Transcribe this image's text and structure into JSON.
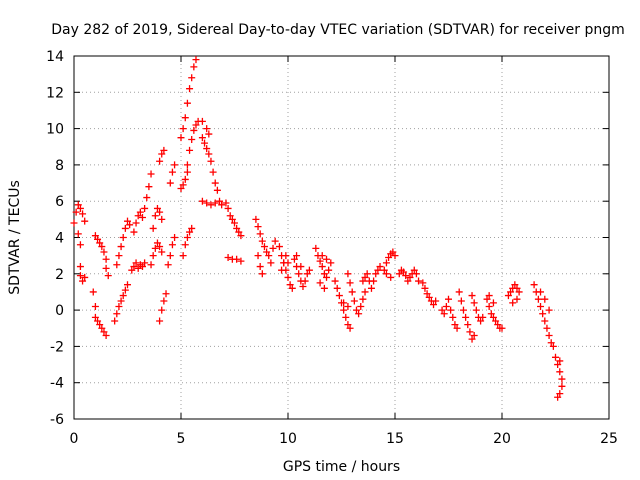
{
  "chart_data": {
    "type": "scatter",
    "title": "Day 282 of 2019, Sidereal Day-to-day VTEC variation (SDTVAR) for receiver pngm",
    "xlabel": "GPS time / hours",
    "ylabel": "SDTVAR / TECUs",
    "xlim": [
      0,
      25
    ],
    "ylim": [
      -6,
      14
    ],
    "xticks": [
      0,
      5,
      10,
      15,
      20,
      25
    ],
    "yticks": [
      -6,
      -4,
      -2,
      0,
      2,
      4,
      6,
      8,
      10,
      12,
      14
    ],
    "grid": true,
    "marker": "+",
    "marker_color": "#ff0000",
    "series": [
      {
        "name": "SDTVAR",
        "points": [
          [
            0.0,
            4.8
          ],
          [
            0.1,
            5.4
          ],
          [
            0.2,
            5.8
          ],
          [
            0.3,
            5.6
          ],
          [
            0.4,
            5.3
          ],
          [
            0.5,
            4.9
          ],
          [
            0.2,
            4.2
          ],
          [
            0.3,
            3.6
          ],
          [
            0.3,
            2.4
          ],
          [
            0.3,
            1.9
          ],
          [
            0.4,
            1.6
          ],
          [
            0.5,
            1.8
          ],
          [
            0.9,
            1.0
          ],
          [
            1.0,
            0.2
          ],
          [
            1.0,
            -0.4
          ],
          [
            1.1,
            -0.6
          ],
          [
            1.2,
            -0.8
          ],
          [
            1.3,
            -1.0
          ],
          [
            1.4,
            -1.2
          ],
          [
            1.5,
            -1.4
          ],
          [
            1.0,
            4.1
          ],
          [
            1.1,
            3.9
          ],
          [
            1.2,
            3.7
          ],
          [
            1.3,
            3.5
          ],
          [
            1.4,
            3.2
          ],
          [
            1.5,
            2.8
          ],
          [
            1.5,
            2.3
          ],
          [
            1.6,
            1.9
          ],
          [
            1.9,
            -0.6
          ],
          [
            2.0,
            -0.2
          ],
          [
            2.1,
            0.2
          ],
          [
            2.2,
            0.5
          ],
          [
            2.3,
            0.8
          ],
          [
            2.4,
            1.1
          ],
          [
            2.5,
            1.4
          ],
          [
            2.0,
            2.5
          ],
          [
            2.1,
            3.0
          ],
          [
            2.2,
            3.5
          ],
          [
            2.3,
            4.0
          ],
          [
            2.4,
            4.5
          ],
          [
            2.5,
            4.9
          ],
          [
            2.6,
            4.7
          ],
          [
            2.7,
            2.2
          ],
          [
            2.8,
            2.4
          ],
          [
            2.9,
            2.6
          ],
          [
            3.0,
            2.3
          ],
          [
            3.1,
            2.5
          ],
          [
            3.2,
            2.4
          ],
          [
            3.3,
            2.6
          ],
          [
            2.8,
            4.3
          ],
          [
            2.9,
            4.8
          ],
          [
            3.0,
            5.2
          ],
          [
            3.1,
            5.4
          ],
          [
            3.2,
            5.1
          ],
          [
            3.3,
            5.6
          ],
          [
            3.4,
            6.2
          ],
          [
            3.5,
            6.8
          ],
          [
            3.6,
            7.5
          ],
          [
            3.6,
            2.5
          ],
          [
            3.7,
            3.0
          ],
          [
            3.8,
            3.4
          ],
          [
            3.9,
            3.7
          ],
          [
            4.0,
            3.5
          ],
          [
            4.1,
            3.2
          ],
          [
            3.7,
            4.5
          ],
          [
            3.8,
            5.2
          ],
          [
            3.9,
            5.6
          ],
          [
            4.0,
            5.4
          ],
          [
            4.1,
            5.0
          ],
          [
            4.0,
            8.2
          ],
          [
            4.1,
            8.6
          ],
          [
            4.2,
            8.8
          ],
          [
            4.0,
            -0.6
          ],
          [
            4.1,
            0.0
          ],
          [
            4.2,
            0.5
          ],
          [
            4.3,
            0.9
          ],
          [
            4.4,
            2.5
          ],
          [
            4.5,
            3.0
          ],
          [
            4.6,
            3.6
          ],
          [
            4.7,
            4.0
          ],
          [
            4.5,
            7.0
          ],
          [
            4.6,
            7.6
          ],
          [
            4.7,
            8.0
          ],
          [
            5.0,
            6.7
          ],
          [
            5.1,
            6.9
          ],
          [
            5.2,
            7.2
          ],
          [
            5.3,
            7.6
          ],
          [
            5.1,
            3.0
          ],
          [
            5.2,
            3.6
          ],
          [
            5.3,
            4.0
          ],
          [
            5.4,
            4.3
          ],
          [
            5.5,
            4.5
          ],
          [
            5.0,
            9.5
          ],
          [
            5.1,
            10.0
          ],
          [
            5.2,
            10.6
          ],
          [
            5.3,
            11.4
          ],
          [
            5.4,
            12.2
          ],
          [
            5.5,
            12.8
          ],
          [
            5.6,
            13.4
          ],
          [
            5.7,
            13.8
          ],
          [
            5.3,
            8.0
          ],
          [
            5.4,
            8.8
          ],
          [
            5.5,
            9.4
          ],
          [
            5.6,
            9.9
          ],
          [
            5.7,
            10.2
          ],
          [
            5.8,
            10.4
          ],
          [
            6.0,
            9.5
          ],
          [
            6.1,
            9.2
          ],
          [
            6.2,
            8.9
          ],
          [
            6.3,
            8.6
          ],
          [
            6.4,
            8.2
          ],
          [
            6.5,
            7.6
          ],
          [
            6.6,
            7.0
          ],
          [
            6.7,
            6.6
          ],
          [
            6.0,
            10.4
          ],
          [
            6.2,
            10.0
          ],
          [
            6.3,
            9.7
          ],
          [
            6.0,
            6.0
          ],
          [
            6.2,
            5.9
          ],
          [
            6.4,
            5.8
          ],
          [
            6.6,
            5.9
          ],
          [
            6.8,
            6.0
          ],
          [
            6.9,
            5.8
          ],
          [
            7.1,
            5.9
          ],
          [
            7.2,
            5.6
          ],
          [
            7.3,
            5.2
          ],
          [
            7.4,
            5.0
          ],
          [
            7.5,
            4.8
          ],
          [
            7.6,
            4.5
          ],
          [
            7.7,
            4.3
          ],
          [
            7.8,
            4.1
          ],
          [
            7.2,
            2.9
          ],
          [
            7.4,
            2.8
          ],
          [
            7.6,
            2.8
          ],
          [
            7.8,
            2.7
          ],
          [
            8.5,
            5.0
          ],
          [
            8.6,
            4.6
          ],
          [
            8.7,
            4.2
          ],
          [
            8.8,
            3.8
          ],
          [
            8.9,
            3.5
          ],
          [
            9.0,
            3.2
          ],
          [
            9.1,
            3.0
          ],
          [
            9.2,
            2.6
          ],
          [
            9.3,
            3.4
          ],
          [
            9.4,
            3.8
          ],
          [
            8.6,
            3.0
          ],
          [
            8.7,
            2.4
          ],
          [
            8.8,
            2.0
          ],
          [
            9.6,
            3.5
          ],
          [
            9.7,
            3.0
          ],
          [
            9.8,
            2.6
          ],
          [
            9.9,
            2.2
          ],
          [
            10.0,
            1.8
          ],
          [
            10.1,
            1.4
          ],
          [
            10.2,
            1.2
          ],
          [
            9.7,
            2.2
          ],
          [
            9.8,
            2.6
          ],
          [
            9.9,
            3.0
          ],
          [
            10.0,
            2.6
          ],
          [
            10.3,
            2.8
          ],
          [
            10.4,
            2.4
          ],
          [
            10.5,
            2.0
          ],
          [
            10.6,
            1.6
          ],
          [
            10.7,
            1.3
          ],
          [
            10.8,
            1.6
          ],
          [
            10.9,
            2.0
          ],
          [
            11.0,
            2.2
          ],
          [
            10.4,
            3.0
          ],
          [
            10.6,
            2.4
          ],
          [
            11.3,
            3.4
          ],
          [
            11.4,
            3.0
          ],
          [
            11.5,
            2.7
          ],
          [
            11.6,
            2.4
          ],
          [
            11.7,
            2.0
          ],
          [
            11.8,
            1.8
          ],
          [
            11.9,
            2.2
          ],
          [
            12.0,
            2.6
          ],
          [
            11.6,
            3.0
          ],
          [
            11.8,
            2.8
          ],
          [
            11.5,
            1.5
          ],
          [
            11.7,
            1.2
          ],
          [
            12.2,
            1.6
          ],
          [
            12.3,
            1.2
          ],
          [
            12.4,
            0.8
          ],
          [
            12.5,
            0.4
          ],
          [
            12.6,
            0.0
          ],
          [
            12.7,
            -0.4
          ],
          [
            12.8,
            -0.8
          ],
          [
            12.9,
            -1.0
          ],
          [
            12.6,
            0.4
          ],
          [
            12.8,
            0.2
          ],
          [
            12.8,
            2.0
          ],
          [
            12.9,
            1.5
          ],
          [
            13.0,
            1.0
          ],
          [
            13.1,
            0.5
          ],
          [
            13.2,
            0.0
          ],
          [
            13.3,
            -0.2
          ],
          [
            13.4,
            0.2
          ],
          [
            13.5,
            0.6
          ],
          [
            13.6,
            1.0
          ],
          [
            13.5,
            1.6
          ],
          [
            13.6,
            1.8
          ],
          [
            13.7,
            2.0
          ],
          [
            13.8,
            1.6
          ],
          [
            13.9,
            1.2
          ],
          [
            14.0,
            1.6
          ],
          [
            14.1,
            2.0
          ],
          [
            14.2,
            2.2
          ],
          [
            14.3,
            2.4
          ],
          [
            14.5,
            2.2
          ],
          [
            14.6,
            2.6
          ],
          [
            14.7,
            2.9
          ],
          [
            14.8,
            3.1
          ],
          [
            14.9,
            3.2
          ],
          [
            15.0,
            3.0
          ],
          [
            14.6,
            2.0
          ],
          [
            14.8,
            1.8
          ],
          [
            15.2,
            2.0
          ],
          [
            15.3,
            2.2
          ],
          [
            15.4,
            2.1
          ],
          [
            15.5,
            1.9
          ],
          [
            15.6,
            1.6
          ],
          [
            15.7,
            1.8
          ],
          [
            15.8,
            2.0
          ],
          [
            15.9,
            2.2
          ],
          [
            16.0,
            2.0
          ],
          [
            16.1,
            1.6
          ],
          [
            16.3,
            1.5
          ],
          [
            16.4,
            1.2
          ],
          [
            16.5,
            0.9
          ],
          [
            16.6,
            0.7
          ],
          [
            16.7,
            0.5
          ],
          [
            16.8,
            0.3
          ],
          [
            16.9,
            0.5
          ],
          [
            17.2,
            0.0
          ],
          [
            17.3,
            -0.2
          ],
          [
            17.4,
            0.2
          ],
          [
            17.5,
            0.6
          ],
          [
            17.6,
            0.0
          ],
          [
            17.7,
            -0.4
          ],
          [
            17.8,
            -0.8
          ],
          [
            17.9,
            -1.0
          ],
          [
            18.0,
            1.0
          ],
          [
            18.1,
            0.5
          ],
          [
            18.2,
            0.0
          ],
          [
            18.3,
            -0.4
          ],
          [
            18.4,
            -0.8
          ],
          [
            18.5,
            -1.2
          ],
          [
            18.6,
            -1.6
          ],
          [
            18.7,
            -1.4
          ],
          [
            18.6,
            0.8
          ],
          [
            18.7,
            0.4
          ],
          [
            18.8,
            0.0
          ],
          [
            18.9,
            -0.4
          ],
          [
            19.0,
            -0.6
          ],
          [
            19.1,
            -0.4
          ],
          [
            19.3,
            0.6
          ],
          [
            19.4,
            0.2
          ],
          [
            19.5,
            -0.2
          ],
          [
            19.6,
            -0.4
          ],
          [
            19.7,
            -0.6
          ],
          [
            19.8,
            -0.8
          ],
          [
            19.9,
            -1.0
          ],
          [
            20.0,
            -1.0
          ],
          [
            19.4,
            0.8
          ],
          [
            19.6,
            0.4
          ],
          [
            20.3,
            0.8
          ],
          [
            20.4,
            1.0
          ],
          [
            20.5,
            1.2
          ],
          [
            20.6,
            1.4
          ],
          [
            20.7,
            1.2
          ],
          [
            20.8,
            1.0
          ],
          [
            20.5,
            0.4
          ],
          [
            20.7,
            0.6
          ],
          [
            21.5,
            1.4
          ],
          [
            21.6,
            1.0
          ],
          [
            21.7,
            0.6
          ],
          [
            21.8,
            0.2
          ],
          [
            21.9,
            -0.2
          ],
          [
            22.0,
            -0.6
          ],
          [
            22.1,
            -1.0
          ],
          [
            22.2,
            -1.4
          ],
          [
            22.3,
            -1.8
          ],
          [
            22.4,
            -2.0
          ],
          [
            21.8,
            1.0
          ],
          [
            22.0,
            0.6
          ],
          [
            22.2,
            0.0
          ],
          [
            22.5,
            -2.6
          ],
          [
            22.6,
            -3.0
          ],
          [
            22.7,
            -3.4
          ],
          [
            22.8,
            -3.8
          ],
          [
            22.8,
            -4.2
          ],
          [
            22.7,
            -4.6
          ],
          [
            22.6,
            -4.8
          ],
          [
            22.7,
            -2.8
          ]
        ]
      }
    ]
  }
}
